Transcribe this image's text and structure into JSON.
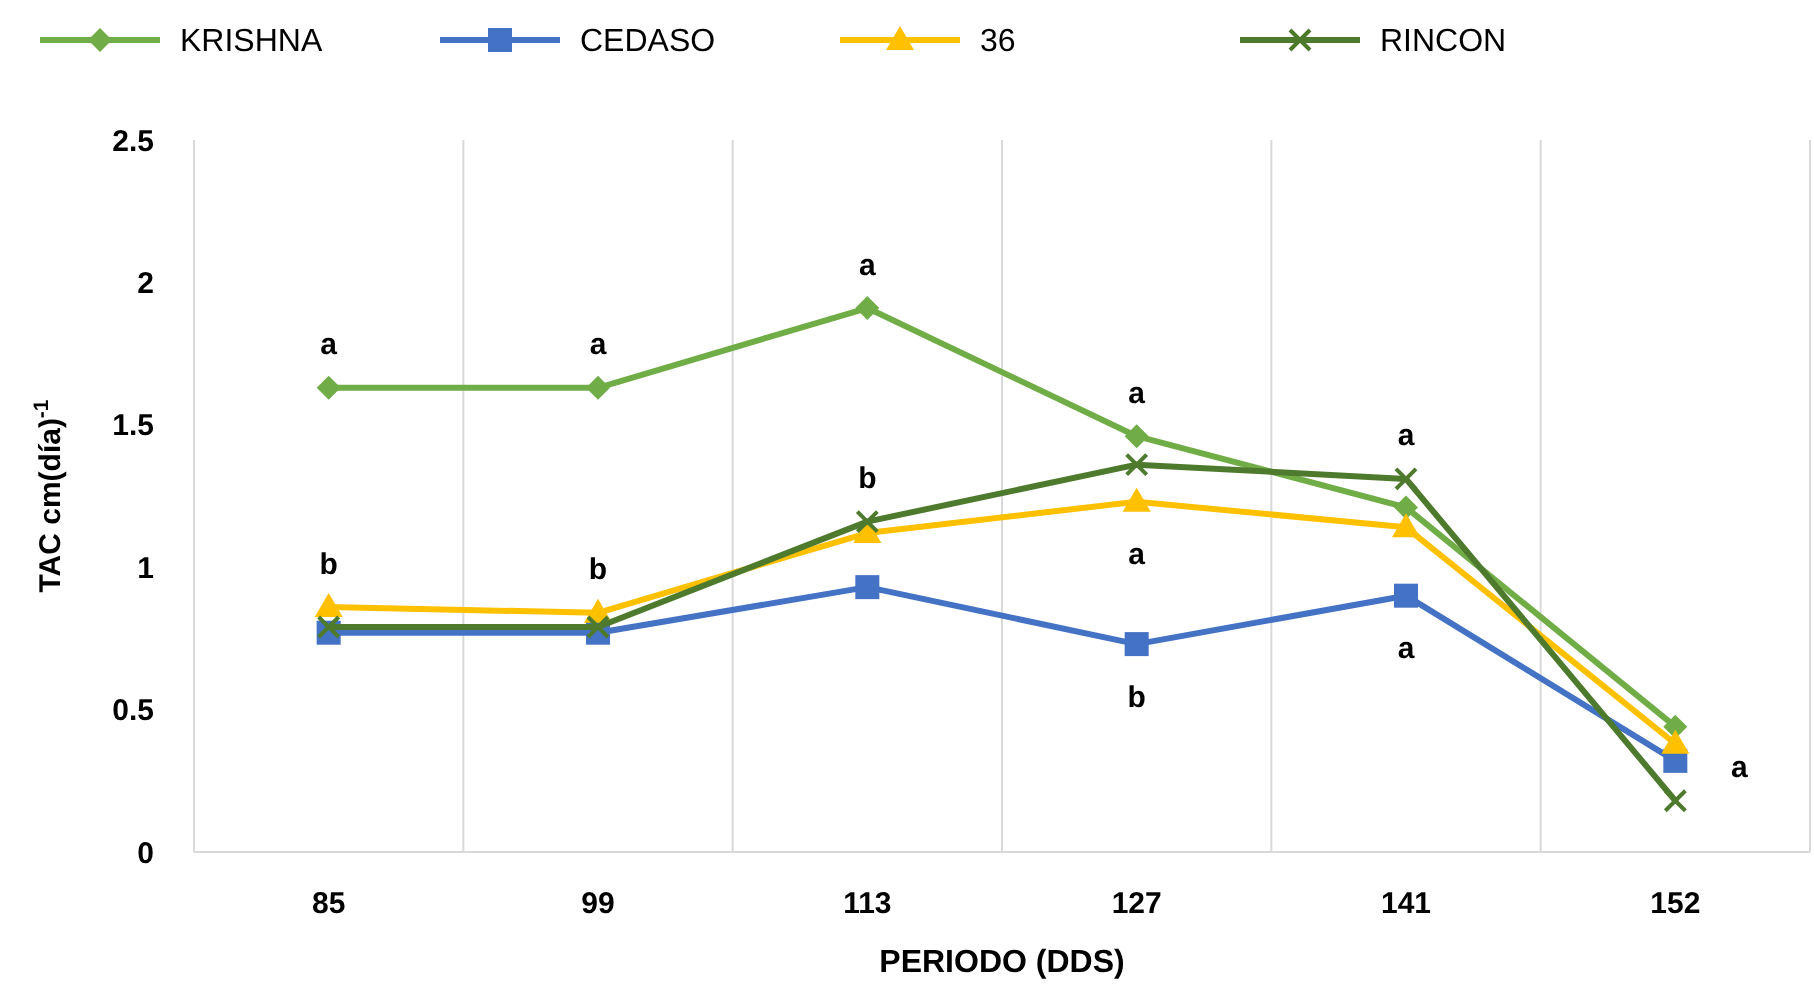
{
  "chart_data": {
    "type": "line",
    "xlabel": "PERIODO (DDS)",
    "ylabel": "TAC  cm(día)$^{-1}$",
    "categories": [
      "85",
      "99",
      "113",
      "127",
      "141",
      "152"
    ],
    "ylim": [
      0,
      2.5
    ],
    "yticks": [
      0,
      0.5,
      1,
      1.5,
      2,
      2.5
    ],
    "grid": "x",
    "legend": "top",
    "series": [
      {
        "name": "KRISHNA",
        "color": "#70ad47",
        "marker": "diamond",
        "values": [
          1.63,
          1.63,
          1.91,
          1.46,
          1.21,
          0.44
        ]
      },
      {
        "name": "CEDASO",
        "color": "#4472c4",
        "marker": "square",
        "values": [
          0.77,
          0.77,
          0.93,
          0.73,
          0.9,
          0.32
        ]
      },
      {
        "name": "36",
        "color": "#ffc000",
        "marker": "triangle",
        "values": [
          0.86,
          0.84,
          1.12,
          1.23,
          1.14,
          0.38
        ]
      },
      {
        "name": "RINCON",
        "color": "#4e7a2e",
        "marker": "cross",
        "values": [
          0.79,
          0.79,
          1.16,
          1.36,
          1.31,
          0.18
        ]
      }
    ],
    "annotations": [
      {
        "text": "a",
        "x": "85",
        "y": 1.63
      },
      {
        "text": "b",
        "x": "85",
        "y": 0.86
      },
      {
        "text": "a",
        "x": "99",
        "y": 1.63
      },
      {
        "text": "b",
        "x": "99",
        "y": 0.84
      },
      {
        "text": "a",
        "x": "113",
        "y": 1.91
      },
      {
        "text": "b",
        "x": "113",
        "y": 1.16
      },
      {
        "text": "a",
        "x": "127",
        "y": 1.46
      },
      {
        "text": "a",
        "x": "127",
        "y": 1.23
      },
      {
        "text": "b",
        "x": "127",
        "y": 0.73
      },
      {
        "text": "a",
        "x": "141",
        "y": 1.31
      },
      {
        "text": "a",
        "x": "141",
        "y": 0.9
      },
      {
        "text": "a",
        "x": "152",
        "y": 0.32
      }
    ]
  }
}
